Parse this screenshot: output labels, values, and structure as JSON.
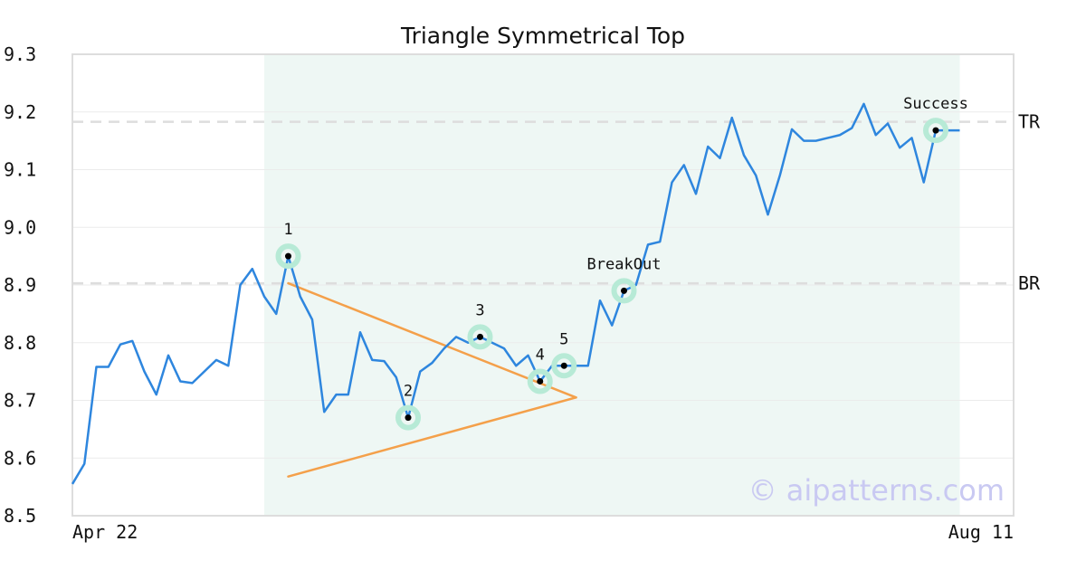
{
  "chart_data": {
    "type": "line",
    "title": "Triangle Symmetrical Top",
    "watermark": "© aipatterns.com",
    "x_tick_labels": [
      "Apr 22",
      "Aug 11"
    ],
    "ylim": [
      8.5,
      9.3
    ],
    "y_ticks": [
      "8.5",
      "8.6",
      "8.7",
      "8.8",
      "8.9",
      "9.0",
      "9.1",
      "9.2",
      "9.3"
    ],
    "grid": "horizontal",
    "colors": {
      "price": "#2e86de",
      "pattern_lines": "#f4a04a",
      "pattern_region": "#eef7f4",
      "ref_lines": "#dddddd",
      "marker_halo": "#b7ead6",
      "marker_dot": "#000000"
    },
    "series": [
      {
        "values": [
          8.555,
          8.59,
          8.758,
          8.758,
          8.797,
          8.803,
          8.75,
          8.71,
          8.778,
          8.733,
          8.73,
          8.75,
          8.77,
          8.76,
          8.9,
          8.928,
          8.88,
          8.85,
          8.95,
          8.88,
          8.84,
          8.68,
          8.71,
          8.71,
          8.818,
          8.77,
          8.768,
          8.74,
          8.67,
          8.75,
          8.765,
          8.79,
          8.81,
          8.8,
          8.81,
          8.8,
          8.79,
          8.76,
          8.778,
          8.733,
          8.76,
          8.76,
          8.76,
          8.76,
          8.873,
          8.83,
          8.89,
          8.9,
          8.97,
          8.975,
          9.078,
          9.108,
          9.058,
          9.14,
          9.12,
          9.19,
          9.125,
          9.09,
          9.022,
          9.09,
          9.17,
          9.15,
          9.15,
          9.155,
          9.16,
          9.172,
          9.214,
          9.16,
          9.18,
          9.138,
          9.155,
          9.078,
          9.168,
          9.168,
          9.168
        ]
      }
    ],
    "reference_lines": [
      {
        "label": "TR",
        "value": 9.183
      },
      {
        "label": "BR",
        "value": 8.903
      }
    ],
    "pattern_region_index": [
      16,
      74
    ],
    "pattern_lines": [
      {
        "from": {
          "i": 18,
          "y": 8.903
        },
        "to": {
          "i": 42,
          "y": 8.705
        }
      },
      {
        "from": {
          "i": 18,
          "y": 8.568
        },
        "to": {
          "i": 42,
          "y": 8.705
        }
      }
    ],
    "points": [
      {
        "label": "1",
        "i": 18,
        "y": 8.95
      },
      {
        "label": "2",
        "i": 28,
        "y": 8.67
      },
      {
        "label": "3",
        "i": 34,
        "y": 8.81
      },
      {
        "label": "4",
        "i": 39,
        "y": 8.733
      },
      {
        "label": "5",
        "i": 41,
        "y": 8.76
      },
      {
        "label": "BreakOut",
        "i": 46,
        "y": 8.89
      },
      {
        "label": "Success",
        "i": 72,
        "y": 9.168
      }
    ]
  }
}
